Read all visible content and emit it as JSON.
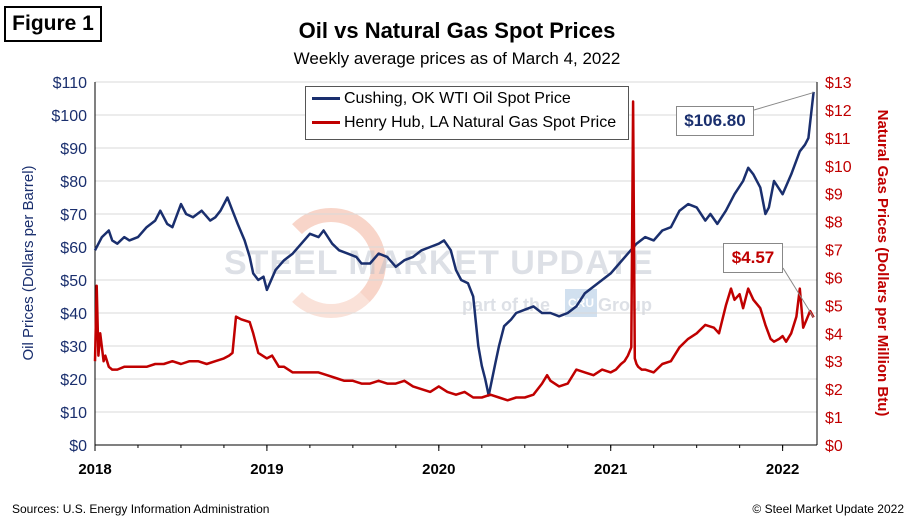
{
  "figure_label": "Figure 1",
  "watermark": {
    "brand": "STEEL MARKET UPDATE",
    "part_of": "part of the",
    "cru": "CRU",
    "group": "Group"
  },
  "footer": {
    "source": "Sources: U.S. Energy Information Administration",
    "copyright": "© Steel Market Update 2022"
  },
  "chart_data": {
    "type": "line",
    "title": "Oil vs Natural Gas Spot Prices",
    "subtitle": "Weekly average prices as of March 4, 2022",
    "xlabel": "",
    "ylabel": "Oil Prices (Dollars per Barrel)",
    "y2label": "Natural Gas Prices (Dollars per Million Btu)",
    "xlim": [
      2018.0,
      2022.2
    ],
    "ylim": [
      0,
      110
    ],
    "y2lim": [
      0,
      13
    ],
    "x_ticks": [
      "2018",
      "2019",
      "2020",
      "2021",
      "2022"
    ],
    "y_ticks": [
      "$0",
      "$10",
      "$20",
      "$30",
      "$40",
      "$50",
      "$60",
      "$70",
      "$80",
      "$90",
      "$100",
      "$110"
    ],
    "y2_ticks": [
      "$0",
      "$1",
      "$2",
      "$3",
      "$4",
      "$5",
      "$6",
      "$7",
      "$8",
      "$9",
      "$10",
      "$11",
      "$12",
      "$13"
    ],
    "grid": true,
    "legend_position": "top-center",
    "colors": {
      "oil": "#1a2f6e",
      "gas": "#c00000",
      "grid": "#d9d9d9",
      "oil_axis": "#1a2f6e",
      "gas_axis": "#c00000"
    },
    "series": [
      {
        "name": "Cushing, OK WTI Oil Spot Price",
        "axis": "left",
        "color": "#1a2f6e",
        "x": [
          2018.0,
          2018.04,
          2018.08,
          2018.1,
          2018.13,
          2018.17,
          2018.2,
          2018.25,
          2018.3,
          2018.35,
          2018.38,
          2018.42,
          2018.45,
          2018.5,
          2018.53,
          2018.57,
          2018.62,
          2018.67,
          2018.7,
          2018.73,
          2018.77,
          2018.8,
          2018.83,
          2018.87,
          2018.9,
          2018.92,
          2018.95,
          2018.98,
          2019.0,
          2019.05,
          2019.1,
          2019.15,
          2019.2,
          2019.25,
          2019.3,
          2019.33,
          2019.38,
          2019.42,
          2019.47,
          2019.52,
          2019.55,
          2019.6,
          2019.65,
          2019.7,
          2019.75,
          2019.8,
          2019.85,
          2019.9,
          2019.95,
          2020.0,
          2020.03,
          2020.07,
          2020.1,
          2020.13,
          2020.17,
          2020.2,
          2020.23,
          2020.25,
          2020.27,
          2020.29,
          2020.31,
          2020.33,
          2020.35,
          2020.38,
          2020.42,
          2020.45,
          2020.5,
          2020.55,
          2020.6,
          2020.65,
          2020.7,
          2020.75,
          2020.8,
          2020.85,
          2020.9,
          2020.95,
          2021.0,
          2021.05,
          2021.1,
          2021.15,
          2021.2,
          2021.25,
          2021.3,
          2021.35,
          2021.4,
          2021.45,
          2021.5,
          2021.55,
          2021.58,
          2021.62,
          2021.67,
          2021.72,
          2021.77,
          2021.8,
          2021.83,
          2021.87,
          2021.9,
          2021.92,
          2021.95,
          2022.0,
          2022.05,
          2022.1,
          2022.13,
          2022.15,
          2022.18
        ],
        "values": [
          59,
          63,
          65,
          62,
          61,
          63,
          62,
          63,
          66,
          68,
          71,
          67,
          66,
          73,
          70,
          69,
          71,
          68,
          69,
          71,
          75,
          71,
          67,
          62,
          57,
          52,
          50,
          51,
          47,
          53,
          56,
          58,
          61,
          64,
          63,
          65,
          61,
          59,
          58,
          57,
          55,
          55,
          58,
          57,
          54,
          56,
          57,
          59,
          60,
          61,
          62,
          59,
          53,
          50,
          49,
          45,
          30,
          24,
          20,
          15,
          20,
          25,
          30,
          36,
          38,
          40,
          41,
          42,
          40,
          40,
          39,
          40,
          42,
          46,
          48,
          50,
          52,
          55,
          58,
          61,
          63,
          62,
          65,
          66,
          71,
          73,
          72,
          68,
          70,
          67,
          71,
          76,
          80,
          84,
          82,
          78,
          70,
          72,
          80,
          76,
          82,
          89,
          91,
          93,
          107
        ]
      },
      {
        "name": "Henry Hub, LA Natural Gas Spot Price",
        "axis": "right",
        "color": "#c00000",
        "x": [
          2018.0,
          2018.01,
          2018.02,
          2018.03,
          2018.05,
          2018.06,
          2018.08,
          2018.1,
          2018.13,
          2018.17,
          2018.2,
          2018.25,
          2018.3,
          2018.35,
          2018.4,
          2018.45,
          2018.5,
          2018.55,
          2018.6,
          2018.65,
          2018.7,
          2018.75,
          2018.78,
          2018.8,
          2018.82,
          2018.85,
          2018.9,
          2018.92,
          2018.95,
          2019.0,
          2019.03,
          2019.07,
          2019.1,
          2019.15,
          2019.2,
          2019.25,
          2019.3,
          2019.35,
          2019.4,
          2019.45,
          2019.5,
          2019.55,
          2019.6,
          2019.65,
          2019.7,
          2019.75,
          2019.8,
          2019.85,
          2019.9,
          2019.95,
          2020.0,
          2020.05,
          2020.1,
          2020.15,
          2020.2,
          2020.25,
          2020.3,
          2020.35,
          2020.4,
          2020.45,
          2020.5,
          2020.55,
          2020.6,
          2020.63,
          2020.65,
          2020.7,
          2020.75,
          2020.8,
          2020.85,
          2020.9,
          2020.95,
          2021.0,
          2021.03,
          2021.06,
          2021.08,
          2021.1,
          2021.12,
          2021.13,
          2021.14,
          2021.15,
          2021.16,
          2021.18,
          2021.2,
          2021.25,
          2021.3,
          2021.35,
          2021.4,
          2021.45,
          2021.5,
          2021.55,
          2021.6,
          2021.63,
          2021.67,
          2021.7,
          2021.72,
          2021.75,
          2021.77,
          2021.8,
          2021.83,
          2021.87,
          2021.9,
          2021.93,
          2021.95,
          2021.98,
          2022.0,
          2022.02,
          2022.05,
          2022.08,
          2022.1,
          2022.12,
          2022.14,
          2022.16,
          2022.18
        ],
        "values": [
          3.0,
          5.7,
          3.2,
          4.0,
          3.0,
          3.2,
          2.8,
          2.7,
          2.7,
          2.8,
          2.8,
          2.8,
          2.8,
          2.9,
          2.9,
          3.0,
          2.9,
          3.0,
          3.0,
          2.9,
          3.0,
          3.1,
          3.2,
          3.3,
          4.6,
          4.5,
          4.4,
          4.0,
          3.3,
          3.1,
          3.2,
          2.8,
          2.8,
          2.6,
          2.6,
          2.6,
          2.6,
          2.5,
          2.4,
          2.3,
          2.3,
          2.2,
          2.2,
          2.3,
          2.2,
          2.2,
          2.3,
          2.1,
          2.0,
          1.9,
          2.1,
          1.9,
          1.8,
          1.9,
          1.7,
          1.7,
          1.8,
          1.7,
          1.6,
          1.7,
          1.7,
          1.8,
          2.2,
          2.5,
          2.3,
          2.1,
          2.2,
          2.7,
          2.6,
          2.5,
          2.7,
          2.6,
          2.7,
          2.9,
          3.0,
          3.2,
          3.5,
          12.3,
          3.1,
          2.9,
          2.8,
          2.7,
          2.7,
          2.6,
          2.9,
          3.0,
          3.5,
          3.8,
          4.0,
          4.3,
          4.2,
          4.0,
          5.0,
          5.6,
          5.2,
          5.4,
          4.9,
          5.6,
          5.2,
          4.9,
          4.3,
          3.8,
          3.7,
          3.8,
          3.9,
          3.7,
          4.0,
          4.6,
          5.6,
          4.2,
          4.5,
          4.8,
          4.57
        ]
      }
    ],
    "annotations": [
      {
        "text": "$106.80",
        "series": "Cushing, OK WTI Oil Spot Price",
        "x": 2022.18,
        "y": 106.8
      },
      {
        "text": "$4.57",
        "series": "Henry Hub, LA Natural Gas Spot Price",
        "x": 2022.18,
        "y": 4.57
      }
    ]
  }
}
